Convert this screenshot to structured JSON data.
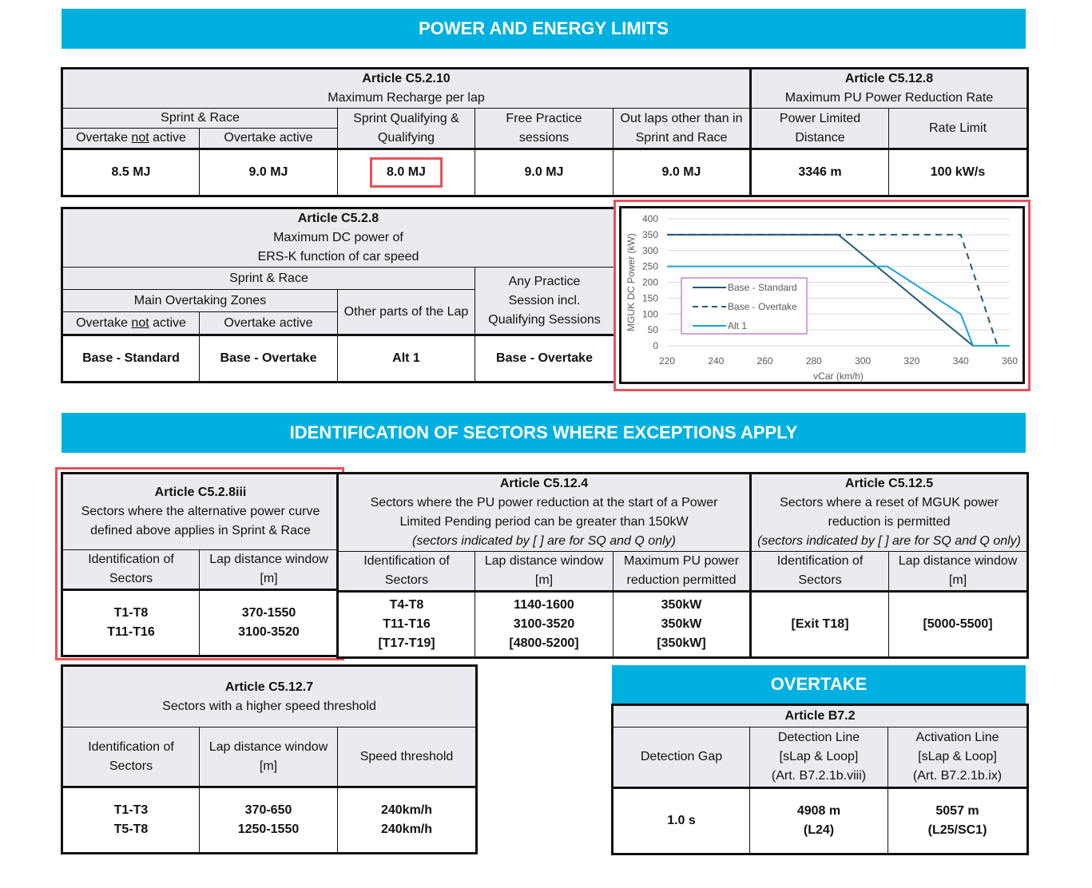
{
  "banners": {
    "power": "POWER AND ENERGY LIMITS",
    "sectors": "IDENTIFICATION OF SECTORS WHERE EXCEPTIONS APPLY",
    "overtake": "OVERTAKE"
  },
  "recharge": {
    "article": "Article C5.2.10",
    "subtitle": "Maximum Recharge per lap",
    "sprint_race": "Sprint & Race",
    "not_active_pre": "Overtake ",
    "not_active_u": "not",
    "not_active_post": " active",
    "active": "Overtake active",
    "sq": "Sprint Qualifying & Qualifying",
    "fp": "Free Practice sessions",
    "outlaps": "Out laps other than in Sprint and Race",
    "values": [
      "8.5 MJ",
      "9.0 MJ",
      "8.0 MJ",
      "9.0 MJ",
      "9.0 MJ"
    ]
  },
  "reduction": {
    "article": "Article C5.12.8",
    "subtitle": "Maximum PU Power Reduction Rate",
    "col1": "Power Limited Distance",
    "col2": "Rate Limit",
    "values": [
      "3346 m",
      "100 kW/s"
    ]
  },
  "dcpower": {
    "article": "Article C5.2.8",
    "line1": "Maximum DC power of",
    "line2": "ERS-K function of car speed",
    "sprint_race": "Sprint & Race",
    "zones": "Main Overtaking Zones",
    "not_active_pre": "Overtake ",
    "not_active_u": "not",
    "not_active_post": " active",
    "active": "Overtake active",
    "other": "Other parts of the Lap",
    "practice": "Any Practice Session incl. Qualifying Sessions",
    "values": [
      "Base - Standard",
      "Base - Overtake",
      "Alt 1",
      "Base - Overtake"
    ]
  },
  "chart_data": {
    "type": "line",
    "xlabel": "vCar (km/h)",
    "ylabel": "MGUK DC Power (kW)",
    "xlim": [
      220,
      360
    ],
    "ylim": [
      0,
      400
    ],
    "xticks": [
      "220",
      "240",
      "260",
      "280",
      "300",
      "320",
      "340",
      "360"
    ],
    "yticks": [
      "0",
      "50",
      "100",
      "150",
      "200",
      "250",
      "300",
      "350",
      "400"
    ],
    "grid": true,
    "legend": "center-left",
    "series": [
      {
        "name": "Base - Standard",
        "color": "#1f5b78",
        "dash": false,
        "x": [
          220,
          290,
          345
        ],
        "y": [
          350,
          350,
          0
        ]
      },
      {
        "name": "Base - Overtake",
        "color": "#1f5b78",
        "dash": true,
        "x": [
          220,
          340,
          355
        ],
        "y": [
          350,
          350,
          0
        ]
      },
      {
        "name": "Alt 1",
        "color": "#1aa3d6",
        "dash": false,
        "x": [
          220,
          310,
          340,
          345,
          360
        ],
        "y": [
          250,
          250,
          100,
          0,
          0
        ]
      }
    ]
  },
  "altcurve": {
    "article": "Article C5.2.8iii",
    "line1": "Sectors where the alternative power curve",
    "line2": "defined above applies in Sprint & Race",
    "col1": "Identification of Sectors",
    "col2": "Lap distance window [m]",
    "ids": [
      "T1-T8",
      "T11-T16"
    ],
    "windows": [
      "370-1550",
      "3100-3520"
    ]
  },
  "pending": {
    "article": "Article C5.12.4",
    "line1": "Sectors where the PU power reduction at the start of a Power",
    "line2": "Limited Pending period can be greater than 150kW",
    "note": "(sectors indicated by [ ] are for SQ and Q only)",
    "col1": "Identification of Sectors",
    "col2": "Lap distance window [m]",
    "col3": "Maximum PU power reduction permitted",
    "ids": [
      "T4-T8",
      "T11-T16",
      "[T17-T19]"
    ],
    "windows": [
      "1140-1600",
      "3100-3520",
      "[4800-5200]"
    ],
    "powers": [
      "350kW",
      "350kW",
      "[350kW]"
    ]
  },
  "reset": {
    "article": "Article C5.12.5",
    "line1": "Sectors where a reset of MGUK power",
    "line2": "reduction is permitted",
    "note": "(sectors indicated by [ ] are for SQ and Q only)",
    "col1": "Identification of Sectors",
    "col2": "Lap distance window [m]",
    "values": [
      "[Exit T18]",
      "[5000-5500]"
    ]
  },
  "speed": {
    "article": "Article C5.12.7",
    "subtitle": "Sectors with a higher speed threshold",
    "col1": "Identification of Sectors",
    "col2": "Lap distance window [m]",
    "col3": "Speed threshold",
    "ids": [
      "T1-T3",
      "T5-T8"
    ],
    "windows": [
      "370-650",
      "1250-1550"
    ],
    "speeds": [
      "240km/h",
      "240km/h"
    ]
  },
  "overtake": {
    "article": "Article B7.2",
    "col1": "Detection Gap",
    "col2a": "Detection Line",
    "col2b": "[sLap & Loop]",
    "col2c": "(Art. B7.2.1b.viii)",
    "col3a": "Activation Line",
    "col3b": "[sLap & Loop]",
    "col3c": "(Art. B7.2.1b.ix)",
    "gap": "1.0 s",
    "det1": "4908 m",
    "det2": "(L24)",
    "act1": "5057 m",
    "act2": "(L25/SC1)"
  }
}
